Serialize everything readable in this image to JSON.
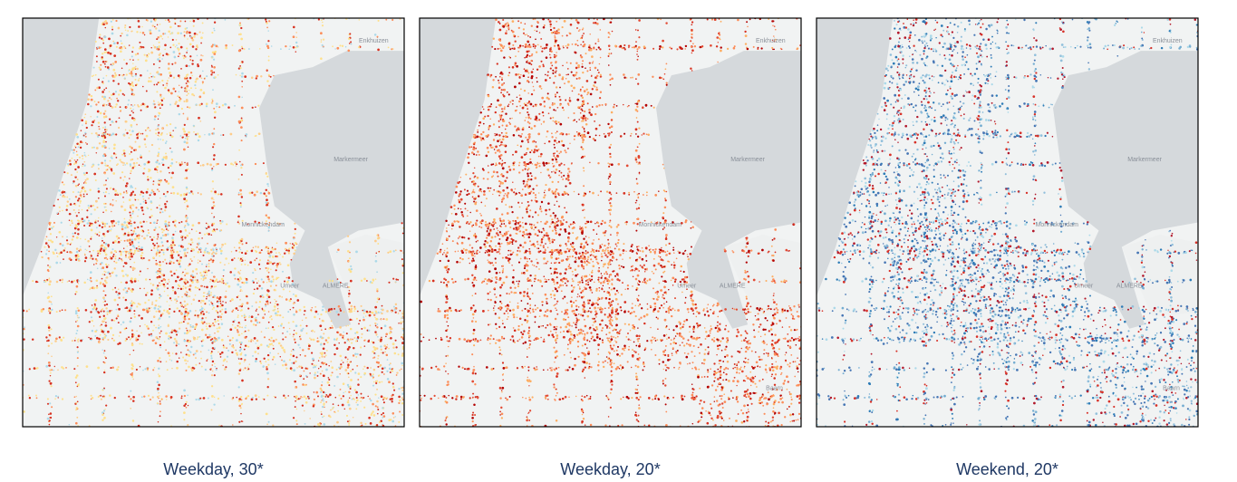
{
  "panels": [
    {
      "caption": "Weekday, 30*",
      "labels": [
        "Enkhuizen",
        "Markermeer",
        "Monnickendam",
        "Umeer",
        "ALMERE"
      ]
    },
    {
      "caption": "Weekday, 20*",
      "labels": [
        "Enkhuizen",
        "Markermeer",
        "Monnickendam",
        "Umeer",
        "ALMERE",
        "Baarn"
      ]
    },
    {
      "caption": "Weekend, 20*",
      "labels": [
        "Enkhuizen",
        "Markermeer",
        "Monnickendam",
        "Umeer",
        "ALMERE",
        "Baarn"
      ]
    }
  ]
}
